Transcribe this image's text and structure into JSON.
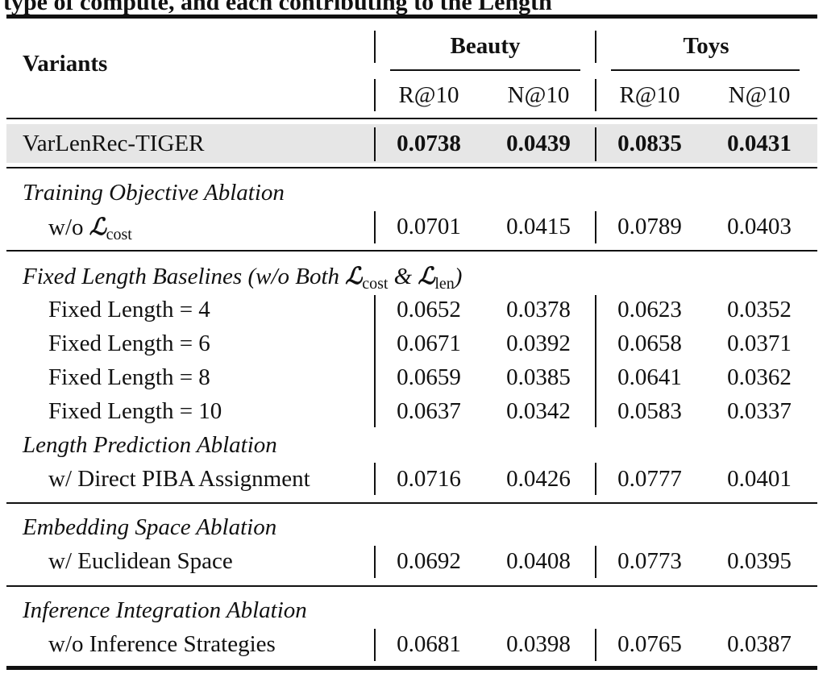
{
  "caption_fragment": "type of compute, and each contributing to the Length",
  "header": {
    "variants_label": "Variants",
    "groups": [
      "Beauty",
      "Toys"
    ],
    "metrics": [
      "R@10",
      "N@10",
      "R@10",
      "N@10"
    ]
  },
  "main_row": {
    "label": "VarLenRec-TIGER",
    "values": [
      "0.0738",
      "0.0439",
      "0.0835",
      "0.0431"
    ]
  },
  "sections": [
    {
      "title": "Training Objective Ablation",
      "rows": [
        {
          "label_prefix": "w/o ",
          "label_symbol": "ℒ",
          "label_sub": "cost",
          "values": [
            "0.0701",
            "0.0415",
            "0.0789",
            "0.0403"
          ]
        }
      ]
    },
    {
      "title_prefix": "Fixed Length Baselines (w/o Both ",
      "title_sub1": "cost",
      "title_mid": " & ",
      "title_sub2": "len",
      "title_suffix": ")",
      "rows": [
        {
          "label": "Fixed Length = 4",
          "values": [
            "0.0652",
            "0.0378",
            "0.0623",
            "0.0352"
          ]
        },
        {
          "label": "Fixed Length = 6",
          "values": [
            "0.0671",
            "0.0392",
            "0.0658",
            "0.0371"
          ]
        },
        {
          "label": "Fixed Length = 8",
          "values": [
            "0.0659",
            "0.0385",
            "0.0641",
            "0.0362"
          ]
        },
        {
          "label": "Fixed Length = 10",
          "values": [
            "0.0637",
            "0.0342",
            "0.0583",
            "0.0337"
          ]
        }
      ]
    },
    {
      "title": "Length Prediction Ablation",
      "rows": [
        {
          "label": "w/ Direct PIBA Assignment",
          "values": [
            "0.0716",
            "0.0426",
            "0.0777",
            "0.0401"
          ]
        }
      ]
    },
    {
      "title": "Embedding Space Ablation",
      "rows": [
        {
          "label": "w/ Euclidean Space",
          "values": [
            "0.0692",
            "0.0408",
            "0.0773",
            "0.0395"
          ]
        }
      ]
    },
    {
      "title": "Inference Integration Ablation",
      "rows": [
        {
          "label": "w/o Inference Strategies",
          "values": [
            "0.0681",
            "0.0398",
            "0.0765",
            "0.0387"
          ]
        }
      ]
    }
  ]
}
